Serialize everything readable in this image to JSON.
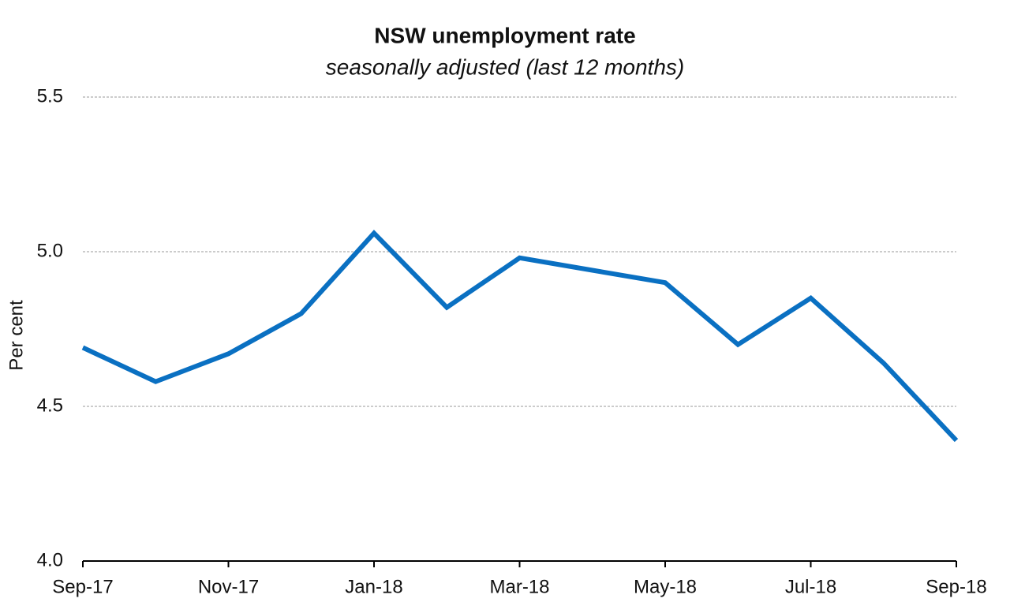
{
  "chart_data": {
    "type": "line",
    "title": "NSW unemployment rate",
    "subtitle": "seasonally adjusted (last 12 months)",
    "y_label": "Per cent",
    "categories": [
      "Sep-17",
      null,
      "Nov-17",
      null,
      "Jan-18",
      null,
      "Mar-18",
      null,
      "May-18",
      null,
      "Jul-18",
      null,
      "Sep-18"
    ],
    "series": [
      {
        "name": "NSW",
        "color": "#0a70c2",
        "values": [
          4.69,
          4.58,
          4.67,
          4.8,
          5.06,
          4.82,
          4.98,
          4.94,
          4.9,
          4.7,
          4.85,
          4.64,
          4.39
        ]
      }
    ],
    "ylim": [
      4,
      5.5
    ],
    "yticks": [
      {
        "value": 4,
        "label": "4.0"
      },
      4.5,
      {
        "value": 5,
        "label": "5.0"
      },
      5.5
    ],
    "grid": true
  }
}
